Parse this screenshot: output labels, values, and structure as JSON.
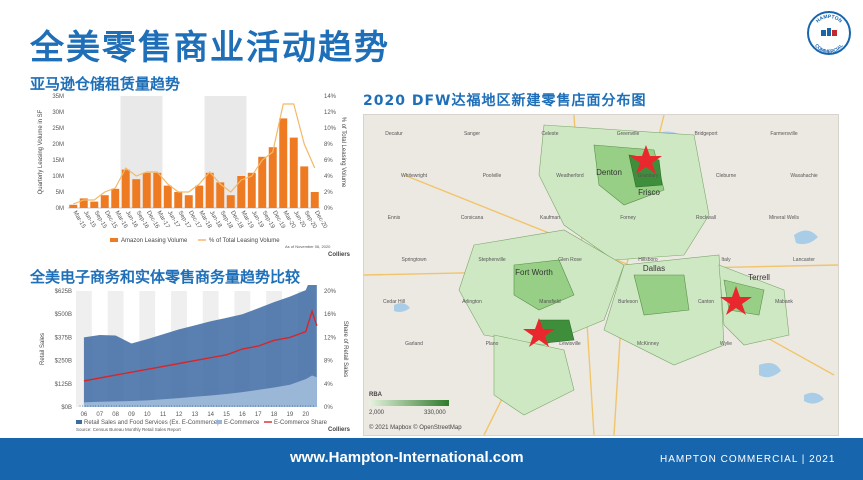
{
  "page": {
    "title": "全美零售商业活动趋势",
    "footer_url": "www.Hampton-International.com",
    "footer_brand": "HAMPTON COMMERCIAL | 2021"
  },
  "logo": {
    "top_text": "HAMPTON",
    "bottom_text": "COMMERCIAL",
    "icon": "building-logo-icon"
  },
  "left_top": {
    "section_title": "亚马逊仓储租赁量趋势",
    "credit": "Colliers",
    "note": "As of November 06, 2020",
    "chart_data": {
      "type": "bar",
      "title": "",
      "ylabel": "Quarterly Leasing Volume in SF",
      "y2label": "% of Total Leasing Volume",
      "ylim": [
        0,
        35
      ],
      "y_ticks": [
        "0M",
        "5M",
        "10M",
        "15M",
        "20M",
        "25M",
        "30M",
        "35M"
      ],
      "y2lim": [
        0,
        14
      ],
      "y2_ticks": [
        "0%",
        "2%",
        "4%",
        "6%",
        "8%",
        "10%",
        "12%",
        "14%"
      ],
      "categories": [
        "Mar-15",
        "Jun-15",
        "Sep-15",
        "Dec-15",
        "Mar-16",
        "Jun-16",
        "Sep-16",
        "Dec-16",
        "Mar-17",
        "Jun-17",
        "Sep-17",
        "Dec-17",
        "Mar-18",
        "Jun-18",
        "Sep-18",
        "Dec-18",
        "Mar-19",
        "Jun-19",
        "Sep-19",
        "Dec-19",
        "Mar-20",
        "Jun-20",
        "Sep-20",
        "Dec-20"
      ],
      "series": [
        {
          "name": "Amazon Leasing Volume",
          "values": [
            1,
            3,
            2,
            4,
            6,
            12,
            9,
            11,
            11,
            7,
            5,
            4,
            7,
            11,
            8,
            4,
            10,
            11,
            16,
            19,
            28,
            22,
            13,
            5
          ]
        },
        {
          "name": "% of Total Leasing Volume",
          "values": [
            0.5,
            1,
            1,
            2,
            2.5,
            5,
            4,
            4.5,
            4.5,
            3,
            2,
            2,
            3,
            4.5,
            3,
            2,
            3.5,
            4,
            6,
            7,
            13,
            13,
            8,
            5
          ]
        }
      ],
      "legend": "bottom",
      "grid": false
    }
  },
  "left_bottom": {
    "section_title": "全美电子商务和实体零售商务量趋势比较",
    "credit": "Colliers",
    "source": "Source: Census Bureau Monthly Retail Sales Report",
    "chart_data": {
      "type": "area",
      "title": "",
      "ylabel": "Retail Sales",
      "y2label": "Share of Retail Sales",
      "ylim": [
        0,
        625
      ],
      "y_ticks": [
        "$0B",
        "$125B",
        "$250B",
        "$375B",
        "$500B",
        "$625B"
      ],
      "y2lim": [
        0,
        20
      ],
      "y2_ticks": [
        "0%",
        "4%",
        "8%",
        "12%",
        "16%",
        "20%"
      ],
      "x_ticks": [
        "06",
        "07",
        "08",
        "09",
        "10",
        "11",
        "12",
        "13",
        "14",
        "15",
        "16",
        "17",
        "18",
        "19",
        "20"
      ],
      "x": [
        2006,
        2007,
        2008,
        2009,
        2010,
        2011,
        2012,
        2013,
        2014,
        2015,
        2016,
        2017,
        2018,
        2019,
        2020,
        2020.4,
        2020.7
      ],
      "series": [
        {
          "name": "Retail Sales and Food Services (Ex. E-Commerce)",
          "values": [
            350,
            360,
            355,
            310,
            330,
            350,
            370,
            385,
            400,
            410,
            420,
            440,
            460,
            475,
            480,
            540,
            520
          ]
        },
        {
          "name": "E-Commerce",
          "values": [
            25,
            28,
            30,
            32,
            36,
            42,
            48,
            55,
            62,
            70,
            80,
            92,
            105,
            120,
            150,
            170,
            160
          ]
        },
        {
          "name": "E-Commerce Share",
          "values": [
            4.5,
            5,
            5.5,
            6,
            6.5,
            7,
            7.5,
            8,
            8.5,
            9,
            10,
            10.5,
            11.5,
            12,
            13,
            16.5,
            14
          ]
        }
      ],
      "legend": "bottom"
    }
  },
  "map": {
    "title": "2020 DFW达福地区新建零售店面分布图",
    "legend_title": "RBA",
    "legend_min": "2,000",
    "legend_max": "330,000",
    "attribution": "© 2021 Mapbox © OpenStreetMap",
    "cities_major": [
      "Fort Worth",
      "Dallas",
      "Denton",
      "Frisco",
      "Terrell"
    ],
    "cities_minor": [
      "Decatur",
      "Sanger",
      "Celeste",
      "Greenville",
      "Bridgeport",
      "Farmersville",
      "Whitewright",
      "Poolville",
      "Weatherford",
      "Granbury",
      "Cleburne",
      "Waxahachie",
      "Ennis",
      "Corsicana",
      "Kaufman",
      "Forney",
      "Rockwall",
      "Mineral Wells",
      "Springtown",
      "Stephenville",
      "Glen Rose",
      "Hillsboro",
      "Italy",
      "Lancaster",
      "Cedar Hill",
      "Arlington",
      "Mansfield",
      "Burleson",
      "Canton",
      "Mabank",
      "Garland",
      "Plano",
      "Lewisville",
      "McKinney",
      "Wylie"
    ],
    "color_light": "#cfe8c4",
    "color_mid": "#96cf85",
    "color_dark": "#3f8e3b",
    "star_color": "#e8282d"
  }
}
